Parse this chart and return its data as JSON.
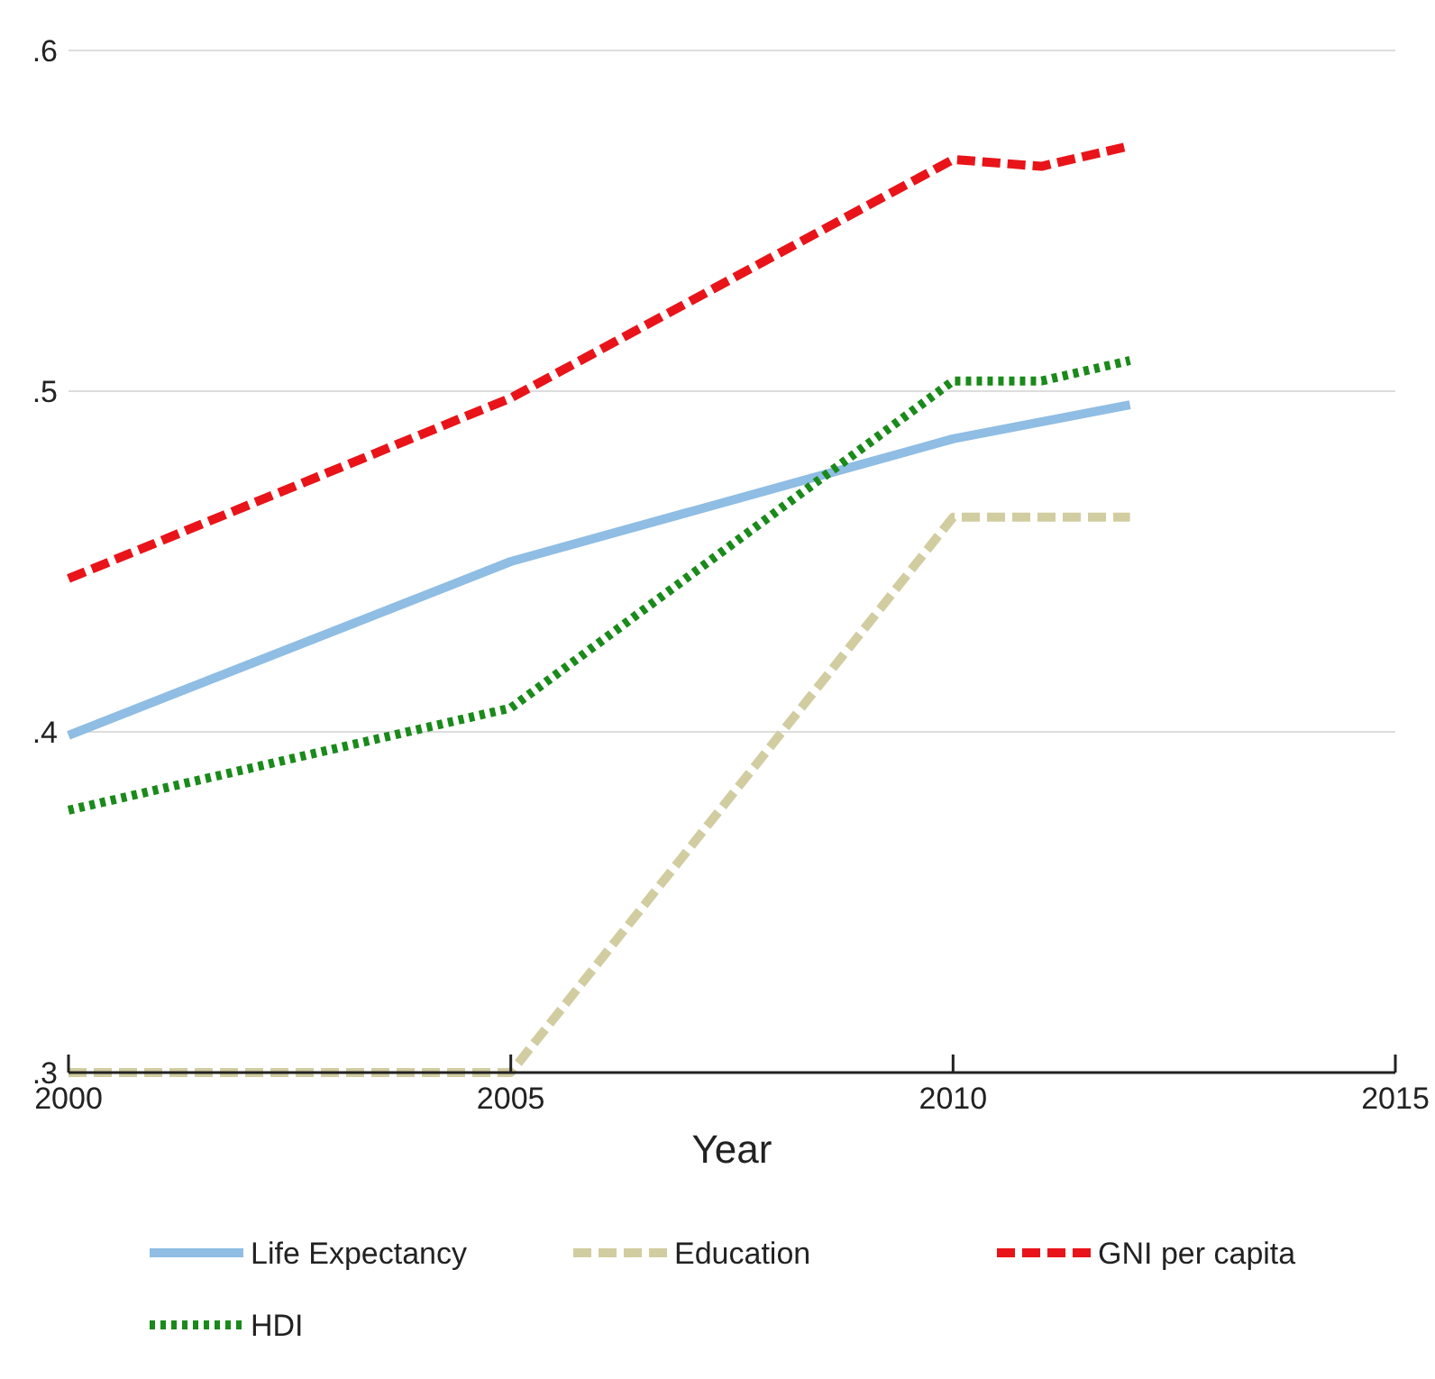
{
  "chart_data": {
    "type": "line",
    "xlabel": "Year",
    "xlim": [
      2000,
      2015
    ],
    "xticks": [
      2000,
      2005,
      2010,
      2015
    ],
    "ylim": [
      0.3,
      0.6
    ],
    "yticks": [
      {
        "value": 0.3,
        "label": ".3"
      },
      {
        "value": 0.4,
        "label": ".4"
      },
      {
        "value": 0.5,
        "label": ".5"
      },
      {
        "value": 0.6,
        "label": ".6"
      }
    ],
    "grid": "y",
    "legend": "bottom",
    "series": [
      {
        "name": "Life Expectancy",
        "color": "#8fbde3",
        "line_style": "solid",
        "x": [
          2000,
          2005,
          2010,
          2012
        ],
        "values": [
          0.399,
          0.45,
          0.486,
          0.496
        ]
      },
      {
        "name": "Education",
        "color": "#d1cda1",
        "line_style": "dashed",
        "x": [
          2000,
          2005,
          2010,
          2012
        ],
        "values": [
          0.3,
          0.3,
          0.463,
          0.463
        ]
      },
      {
        "name": "GNI per capita",
        "color": "#e8141a",
        "line_style": "dashed",
        "x": [
          2000,
          2005,
          2010,
          2011,
          2012
        ],
        "values": [
          0.445,
          0.498,
          0.568,
          0.566,
          0.572
        ]
      },
      {
        "name": "HDI",
        "color": "#1a8a1a",
        "line_style": "dotted",
        "x": [
          2000,
          2005,
          2010,
          2011,
          2012
        ],
        "values": [
          0.377,
          0.407,
          0.503,
          0.503,
          0.509
        ]
      }
    ]
  }
}
